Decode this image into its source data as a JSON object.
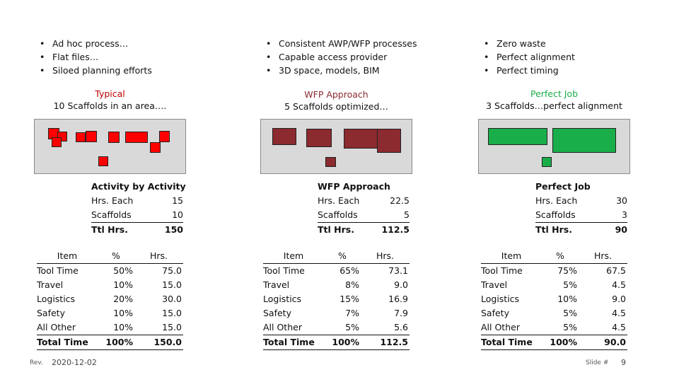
{
  "colors": {
    "red": "#ff0000",
    "maroon": "#8b2a2f",
    "green": "#1aae4a",
    "panel": "#d9d9d9"
  },
  "columns": [
    {
      "bullets": [
        "Ad hoc process…",
        "Flat files…",
        "Siloed planning efforts"
      ],
      "heading_line1": "Typical",
      "heading_line2": "10 Scaffolds in an area….",
      "heading_color": "#c00000",
      "scaffolds_shown": 10,
      "summary": {
        "title": "Activity by Activity",
        "rows": [
          {
            "label": "Hrs. Each",
            "value": "15"
          },
          {
            "label": "Scaffolds",
            "value": "10"
          },
          {
            "label": "Ttl Hrs.",
            "value": "150"
          }
        ]
      },
      "table": {
        "headers": [
          "Item",
          "%",
          "Hrs."
        ],
        "rows": [
          [
            "Tool Time",
            "50%",
            "75.0"
          ],
          [
            "Travel",
            "10%",
            "15.0"
          ],
          [
            "Logistics",
            "20%",
            "30.0"
          ],
          [
            "Safety",
            "10%",
            "15.0"
          ],
          [
            "All Other",
            "10%",
            "15.0"
          ]
        ],
        "total": [
          "Total Time",
          "100%",
          "150.0"
        ]
      }
    },
    {
      "bullets": [
        "Consistent AWP/WFP processes",
        "Capable access provider",
        "3D space, models, BIM"
      ],
      "heading_line1": "WFP Approach",
      "heading_line2": "5 Scaffolds optimized…",
      "heading_color": "#8b2a2f",
      "scaffolds_shown": 5,
      "summary": {
        "title": "WFP Approach",
        "rows": [
          {
            "label": "Hrs. Each",
            "value": "22.5"
          },
          {
            "label": "Scaffolds",
            "value": "5"
          },
          {
            "label": "Ttl Hrs.",
            "value": "112.5"
          }
        ]
      },
      "table": {
        "headers": [
          "Item",
          "%",
          "Hrs."
        ],
        "rows": [
          [
            "Tool Time",
            "65%",
            "73.1"
          ],
          [
            "Travel",
            "8%",
            "9.0"
          ],
          [
            "Logistics",
            "15%",
            "16.9"
          ],
          [
            "Safety",
            "7%",
            "7.9"
          ],
          [
            "All Other",
            "5%",
            "5.6"
          ]
        ],
        "total": [
          "Total Time",
          "100%",
          "112.5"
        ]
      }
    },
    {
      "bullets": [
        "Zero waste",
        "Perfect alignment",
        "Perfect timing"
      ],
      "heading_line1": "Perfect Job",
      "heading_line2": "3 Scaffolds…perfect alignment",
      "heading_color": "#1aae4a",
      "scaffolds_shown": 3,
      "summary": {
        "title": "Perfect Job",
        "rows": [
          {
            "label": "Hrs. Each",
            "value": "30"
          },
          {
            "label": "Scaffolds",
            "value": "3"
          },
          {
            "label": "Ttl Hrs.",
            "value": "90"
          }
        ]
      },
      "table": {
        "headers": [
          "Item",
          "%",
          "Hrs."
        ],
        "rows": [
          [
            "Tool Time",
            "75%",
            "67.5"
          ],
          [
            "Travel",
            "5%",
            "4.5"
          ],
          [
            "Logistics",
            "10%",
            "9.0"
          ],
          [
            "Safety",
            "5%",
            "4.5"
          ],
          [
            "All Other",
            "5%",
            "4.5"
          ]
        ],
        "total": [
          "Total Time",
          "100%",
          "90.0"
        ]
      }
    }
  ],
  "footer": {
    "rev_label": "Rev.",
    "date": "2020-12-02",
    "slide_label": "Slide #",
    "slide_number": "9"
  }
}
